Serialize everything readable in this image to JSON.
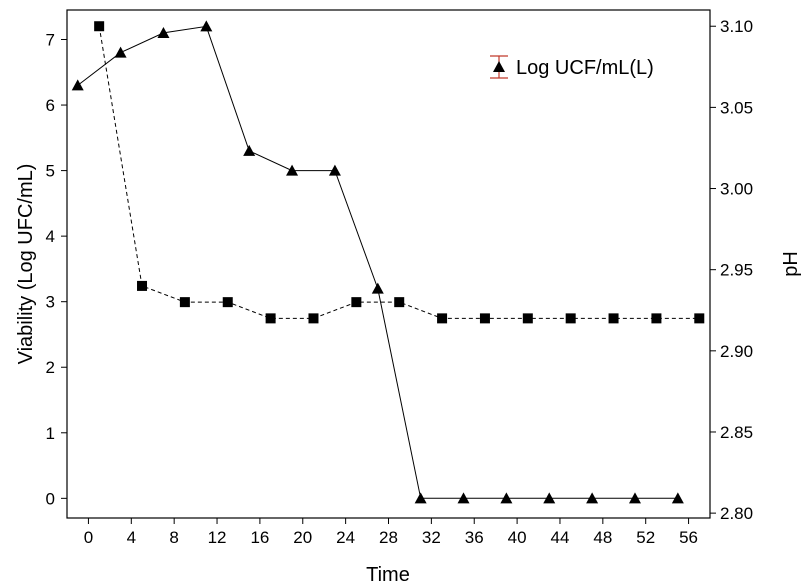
{
  "chart_data": {
    "type": "line",
    "xlabel": "Time",
    "ylabel_left": "Viability (Log UFC/mL)",
    "ylabel_right": "pH",
    "xlim": [
      -2,
      58
    ],
    "x_ticks": [
      "0",
      "4",
      "8",
      "12",
      "16",
      "20",
      "24",
      "28",
      "32",
      "36",
      "40",
      "44",
      "48",
      "52",
      "56"
    ],
    "ylim_left": [
      -0.3,
      7.45
    ],
    "y_left_ticks": [
      "0",
      "1",
      "2",
      "3",
      "4",
      "5",
      "6",
      "7"
    ],
    "ylim_right": [
      2.797,
      3.11
    ],
    "y_right_ticks": [
      "2.80",
      "2.85",
      "2.90",
      "2.95",
      "3.00",
      "3.05",
      "3.10"
    ],
    "grid": false,
    "legend_position": "top-right",
    "series": [
      {
        "name": "Log UCF/mL(L)",
        "axis": "left",
        "marker": "triangle",
        "line": "solid",
        "x": [
          -1,
          3,
          7,
          11,
          15,
          19,
          23,
          27,
          31,
          35,
          39,
          43,
          47,
          51,
          55
        ],
        "y": [
          6.3,
          6.8,
          7.1,
          7.2,
          5.3,
          5.0,
          5.0,
          3.2,
          0.0,
          0.0,
          0.0,
          0.0,
          0.0,
          0.0,
          0.0
        ]
      },
      {
        "axis": "right",
        "marker": "square",
        "line": "dashed",
        "x": [
          1,
          5,
          9,
          13,
          17,
          21,
          25,
          29,
          33,
          37,
          41,
          45,
          49,
          53,
          57
        ],
        "y": [
          3.1,
          2.94,
          2.93,
          2.93,
          2.92,
          2.92,
          2.93,
          2.93,
          2.92,
          2.92,
          2.92,
          2.92,
          2.92,
          2.92,
          2.92
        ]
      }
    ]
  }
}
